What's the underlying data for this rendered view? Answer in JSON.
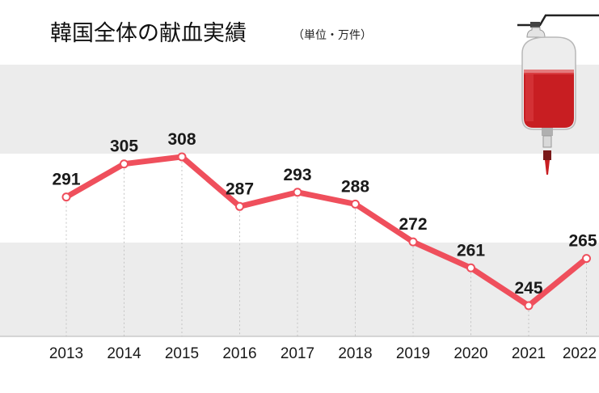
{
  "title": "韓国全体の献血実績",
  "unit": "（単位・万件）",
  "icon": "blood-bag-icon",
  "colors": {
    "line": "#ef4f5c",
    "band": "#ececec",
    "blood": "#c81e22"
  },
  "chart_data": {
    "type": "line",
    "title": "韓国全体の献血実績",
    "unit": "（単位・万件）",
    "categories": [
      "2013",
      "2014",
      "2015",
      "2016",
      "2017",
      "2018",
      "2019",
      "2020",
      "2021",
      "2022"
    ],
    "values": [
      291,
      305,
      308,
      287,
      293,
      288,
      272,
      261,
      245,
      265
    ],
    "data_labels": [
      "291",
      "305",
      "308",
      "287",
      "293",
      "288",
      "272",
      "261",
      "245",
      "265"
    ],
    "ylim": [
      232,
      347
    ],
    "grid": "vertical dotted lines at each year; alternating horizontal bands",
    "legend": "none"
  }
}
